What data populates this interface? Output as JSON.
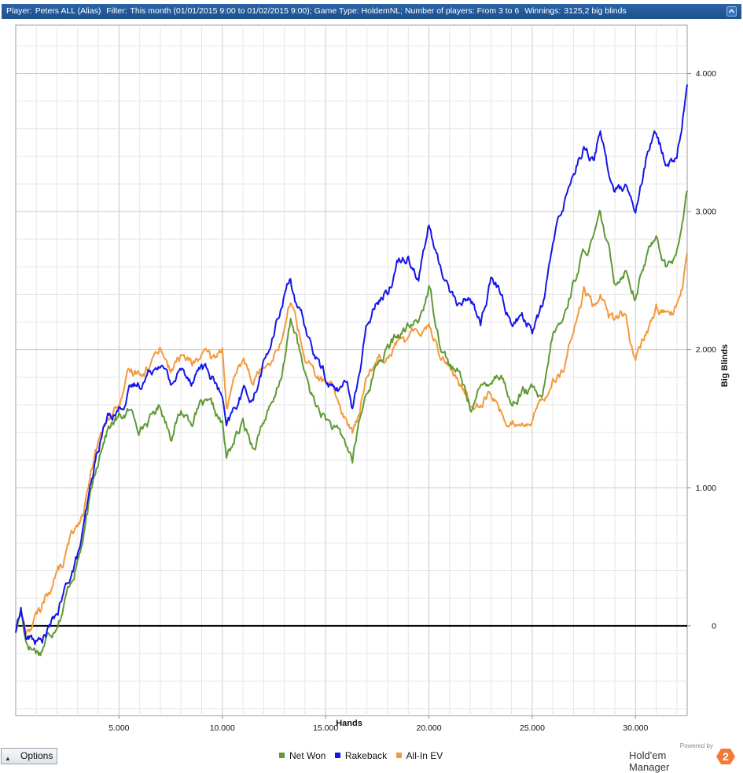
{
  "header": {
    "player_label": "Player:",
    "player_value": "Peters ALL (Alias)",
    "filter_label": "Filter:",
    "filter_value": "This month (01/01/2015 9:00 to 01/02/2015 9:00); Game Type: HoldemNL; Number of players: From 3 to 6",
    "winnings_label": "Winnings:",
    "winnings_value": "3125,2 big blinds"
  },
  "footer": {
    "options_label": "Options",
    "brand_powered": "Powered by",
    "brand_name": "Hold'em Manager",
    "brand_logo_text": "2"
  },
  "colors": {
    "net_won": "#5e9a35",
    "rakeback": "#1616e8",
    "allin_ev": "#f39a3c",
    "header_bg": "#1d4f8c",
    "logo": "#f27a38"
  },
  "chart_data": {
    "type": "line",
    "xlabel": "Hands",
    "ylabel": "Big Blinds",
    "xlim": [
      0,
      32500
    ],
    "ylim": [
      -650,
      4350
    ],
    "x_ticks": [
      5000,
      10000,
      15000,
      20000,
      25000,
      30000
    ],
    "x_tick_labels": [
      "5.000",
      "10.000",
      "15.000",
      "20.000",
      "25.000",
      "30.000"
    ],
    "y_ticks": [
      0,
      1000,
      2000,
      3000,
      4000
    ],
    "y_tick_labels": [
      "0",
      "1.000",
      "2.000",
      "3.000",
      "4.000"
    ],
    "grid": true,
    "legend_position": "bottom-center",
    "x": [
      0,
      250,
      500,
      800,
      1200,
      1500,
      1800,
      2000,
      2300,
      2600,
      3000,
      3300,
      3600,
      3900,
      4200,
      4500,
      5000,
      5500,
      6000,
      6500,
      7000,
      7500,
      8000,
      8500,
      9000,
      9500,
      10000,
      10200,
      10600,
      11000,
      11500,
      12000,
      12500,
      13000,
      13300,
      13600,
      14000,
      14500,
      15000,
      15500,
      16000,
      16300,
      16600,
      17000,
      17500,
      18000,
      18500,
      19000,
      19500,
      20000,
      20500,
      21000,
      21500,
      22000,
      22500,
      23000,
      23500,
      24000,
      24500,
      25000,
      25500,
      26000,
      26500,
      27000,
      27500,
      28000,
      28300,
      28700,
      29000,
      29500,
      30000,
      30500,
      31000,
      31500,
      32000,
      32300,
      32500
    ],
    "series": [
      {
        "name": "Net Won",
        "color": "#5e9a35",
        "values": [
          -50,
          120,
          -100,
          -150,
          -180,
          -80,
          -20,
          50,
          150,
          300,
          480,
          650,
          900,
          1150,
          1350,
          1450,
          1500,
          1550,
          1450,
          1500,
          1600,
          1400,
          1550,
          1500,
          1600,
          1550,
          1450,
          1200,
          1350,
          1450,
          1300,
          1500,
          1600,
          1900,
          2200,
          2100,
          1800,
          1600,
          1500,
          1400,
          1300,
          1200,
          1450,
          1700,
          1900,
          2000,
          2100,
          2150,
          2200,
          2450,
          2100,
          1900,
          1800,
          1600,
          1700,
          1800,
          1850,
          1600,
          1700,
          1700,
          1600,
          2100,
          2200,
          2500,
          2700,
          2800,
          2950,
          2700,
          2500,
          2600,
          2400,
          2650,
          2850,
          2600,
          2700,
          2950,
          3150
        ]
      },
      {
        "name": "Rakeback",
        "color": "#1616e8",
        "values": [
          -50,
          140,
          -80,
          -100,
          -120,
          -50,
          20,
          80,
          200,
          350,
          500,
          700,
          950,
          1200,
          1400,
          1520,
          1580,
          1700,
          1750,
          1850,
          1950,
          1750,
          1850,
          1800,
          1900,
          1800,
          1650,
          1400,
          1550,
          1700,
          1650,
          1900,
          2100,
          2400,
          2550,
          2300,
          2150,
          1950,
          1800,
          1700,
          1750,
          1600,
          1800,
          2150,
          2400,
          2450,
          2650,
          2700,
          2550,
          2900,
          2600,
          2450,
          2300,
          2400,
          2200,
          2500,
          2400,
          2200,
          2250,
          2150,
          2300,
          2750,
          3050,
          3300,
          3500,
          3350,
          3600,
          3300,
          3150,
          3150,
          2950,
          3350,
          3550,
          3350,
          3400,
          3700,
          3920
        ]
      },
      {
        "name": "All-In EV",
        "color": "#f39a3c",
        "values": [
          -30,
          100,
          -40,
          20,
          100,
          250,
          300,
          400,
          450,
          600,
          750,
          850,
          1050,
          1250,
          1400,
          1500,
          1600,
          1800,
          1850,
          1900,
          2050,
          1850,
          1950,
          1900,
          1950,
          1900,
          2000,
          1600,
          1750,
          1900,
          1800,
          1900,
          2000,
          2150,
          2350,
          2200,
          1950,
          1800,
          1750,
          1650,
          1500,
          1400,
          1500,
          1800,
          1950,
          2000,
          2100,
          2050,
          2150,
          2200,
          2000,
          1900,
          1750,
          1600,
          1650,
          1700,
          1550,
          1450,
          1500,
          1500,
          1650,
          1800,
          1850,
          2100,
          2400,
          2300,
          2450,
          2250,
          2200,
          2250,
          1900,
          2100,
          2300,
          2250,
          2300,
          2450,
          2700
        ]
      }
    ]
  }
}
